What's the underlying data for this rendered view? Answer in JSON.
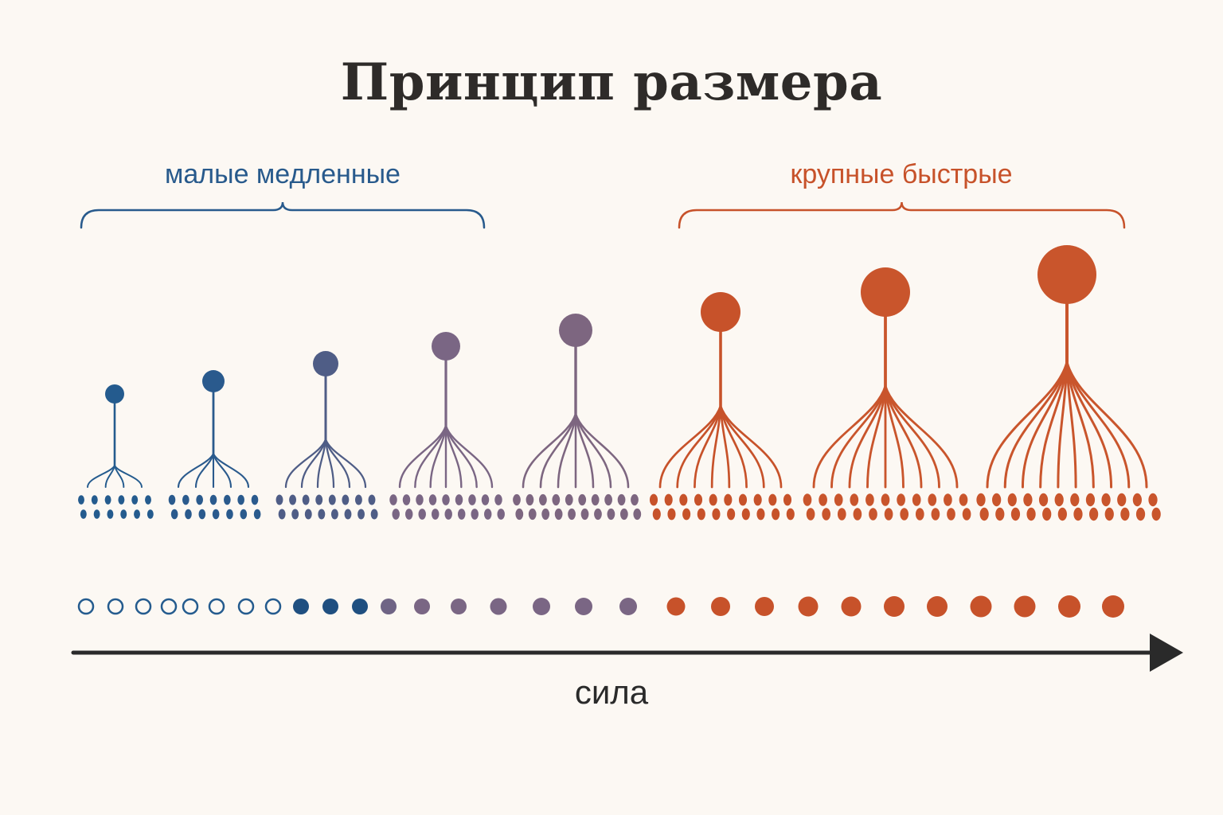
{
  "title": "Принцип размера",
  "groups": {
    "slow": {
      "label": "малые медленные",
      "color": "#285a8c"
    },
    "fast": {
      "label": "крупные быстрые",
      "color": "#c7522a"
    }
  },
  "axis": {
    "label": "сила",
    "color": "#2a2a2a"
  },
  "motor_units": [
    {
      "color": "#245b8e"
    },
    {
      "color": "#2a5a8d"
    },
    {
      "color": "#4f5d86"
    },
    {
      "color": "#7a6684"
    },
    {
      "color": "#7d6680"
    },
    {
      "color": "#c7522a"
    },
    {
      "color": "#c9552c"
    },
    {
      "color": "#c9552c"
    }
  ],
  "recruitment_dots": [
    {
      "style": "hollow",
      "color": "#245b8e"
    },
    {
      "style": "hollow",
      "color": "#245b8e"
    },
    {
      "style": "hollow",
      "color": "#245b8e"
    },
    {
      "style": "hollow",
      "color": "#245b8e"
    },
    {
      "style": "hollow",
      "color": "#245b8e"
    },
    {
      "style": "hollow",
      "color": "#245b8e"
    },
    {
      "style": "hollow",
      "color": "#245b8e"
    },
    {
      "style": "hollow",
      "color": "#245b8e"
    },
    {
      "style": "filled",
      "color": "#1f4f80"
    },
    {
      "style": "filled",
      "color": "#1f4f80"
    },
    {
      "style": "filled",
      "color": "#1f4f80"
    },
    {
      "style": "filled",
      "color": "#6f6485"
    },
    {
      "style": "filled",
      "color": "#7a6684"
    },
    {
      "style": "filled",
      "color": "#7a6684"
    },
    {
      "style": "filled",
      "color": "#7a6684"
    },
    {
      "style": "filled",
      "color": "#7a6684"
    },
    {
      "style": "filled",
      "color": "#7a6684"
    },
    {
      "style": "filled",
      "color": "#7a6684"
    },
    {
      "style": "filled",
      "color": "#c7522a"
    },
    {
      "style": "filled",
      "color": "#c7522a"
    },
    {
      "style": "filled",
      "color": "#c7522a"
    },
    {
      "style": "filled",
      "color": "#c7522a"
    },
    {
      "style": "filled",
      "color": "#c7522a"
    },
    {
      "style": "filled",
      "color": "#c7522a"
    },
    {
      "style": "filled",
      "color": "#c7522a"
    },
    {
      "style": "filled",
      "color": "#c7522a"
    },
    {
      "style": "filled",
      "color": "#c7522a"
    },
    {
      "style": "filled",
      "color": "#c7522a"
    },
    {
      "style": "filled",
      "color": "#c7522a"
    }
  ]
}
